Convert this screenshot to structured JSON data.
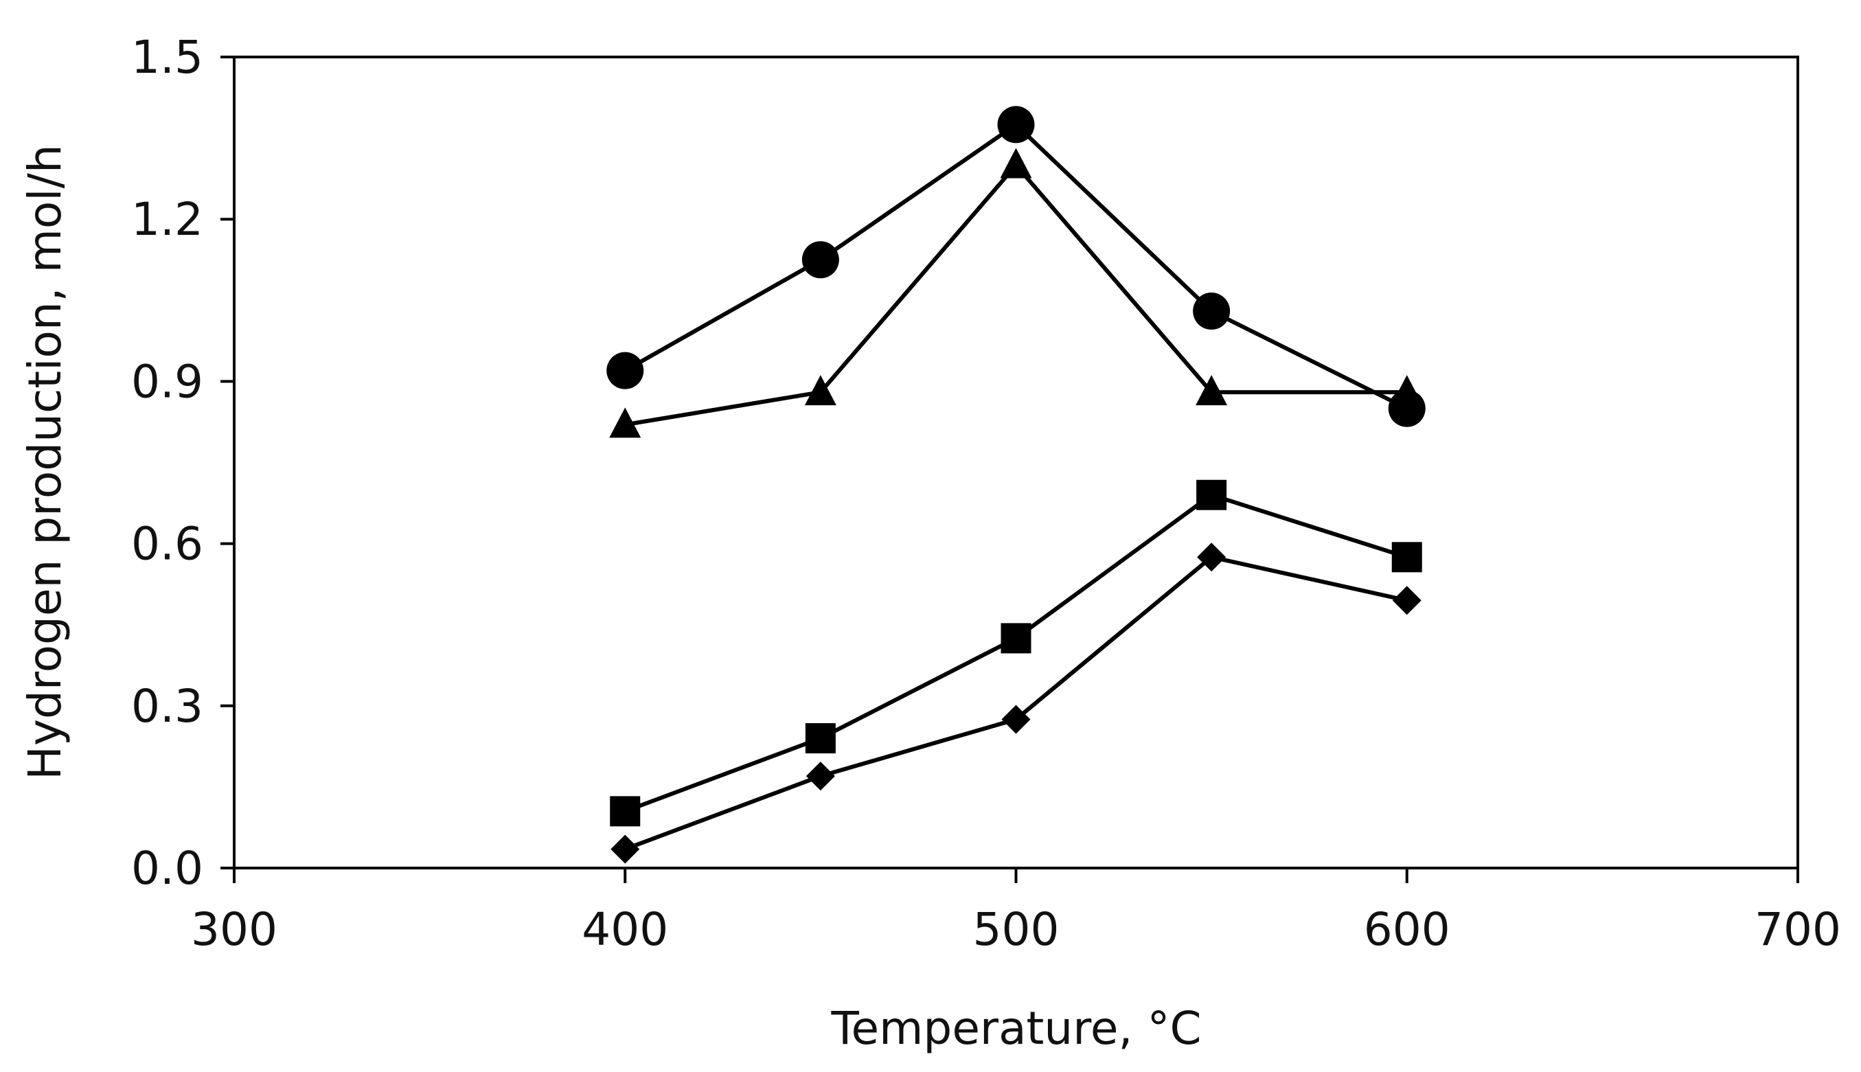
{
  "chart_data": {
    "type": "line",
    "title": "",
    "xlabel": "Temperature, °C",
    "ylabel": "Hydrogen production, mol/h",
    "xlim": [
      300,
      700
    ],
    "ylim": [
      0.0,
      1.5
    ],
    "x_ticks": [
      "300",
      "400",
      "500",
      "600",
      "700"
    ],
    "y_ticks": [
      "0.0",
      "0.3",
      "0.6",
      "0.9",
      "1.2",
      "1.5"
    ],
    "grid": false,
    "legend": "none",
    "series": [
      {
        "marker": "circle",
        "color": "#000000",
        "x": [
          400,
          450,
          500,
          550,
          600
        ],
        "y": [
          0.92,
          1.125,
          1.375,
          1.03,
          0.85
        ]
      },
      {
        "marker": "triangle",
        "color": "#000000",
        "x": [
          400,
          450,
          500,
          550,
          600
        ],
        "y": [
          0.82,
          0.88,
          1.3,
          0.88,
          0.88
        ]
      },
      {
        "marker": "square",
        "color": "#000000",
        "x": [
          400,
          450,
          500,
          550,
          600
        ],
        "y": [
          0.105,
          0.24,
          0.425,
          0.69,
          0.575
        ]
      },
      {
        "marker": "diamond",
        "color": "#000000",
        "x": [
          400,
          450,
          500,
          550,
          600
        ],
        "y": [
          0.035,
          0.17,
          0.275,
          0.575,
          0.495
        ]
      }
    ]
  }
}
